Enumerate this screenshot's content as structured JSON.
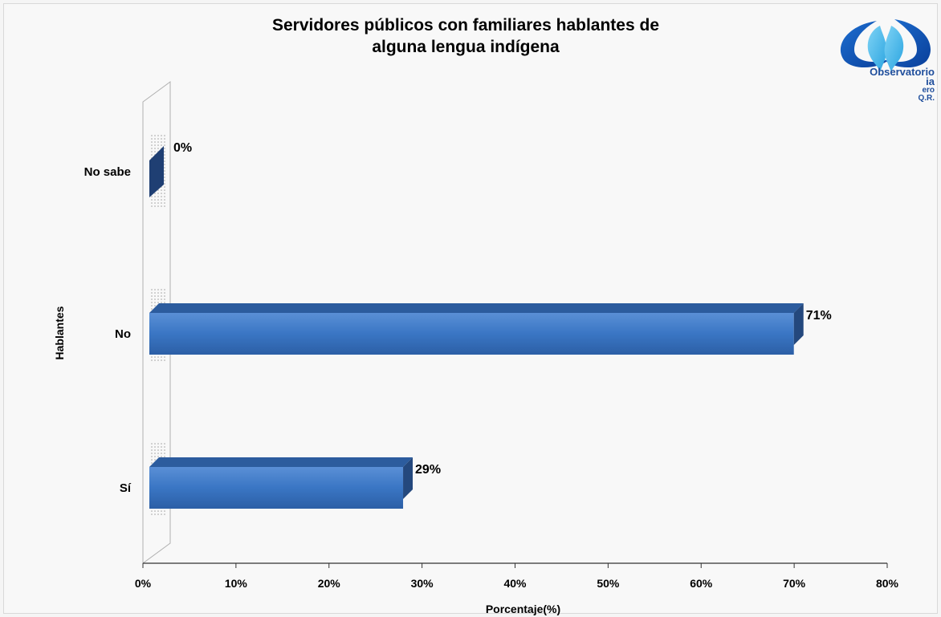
{
  "chart_data": {
    "type": "bar",
    "orientation": "horizontal",
    "title_lines": [
      "Servidores públicos con familiares hablantes de",
      "alguna lengua indígena"
    ],
    "xlabel": "Porcentaje(%)",
    "ylabel": "Hablantes",
    "categories": [
      "No sabe",
      "No",
      "Sí"
    ],
    "values": [
      0,
      71,
      29
    ],
    "value_labels": [
      "0%",
      "71%",
      "29%"
    ],
    "xlim": [
      0,
      80
    ],
    "x_ticks": [
      "0%",
      "10%",
      "20%",
      "30%",
      "40%",
      "50%",
      "60%",
      "70%",
      "80%"
    ],
    "grid": false,
    "legend": "none",
    "bar_color": "#3a76c4",
    "bar_color_dark": "#1f3f73"
  },
  "logo": {
    "lines": [
      "Observatorio",
      "ia",
      "ero",
      "Q.R."
    ]
  }
}
